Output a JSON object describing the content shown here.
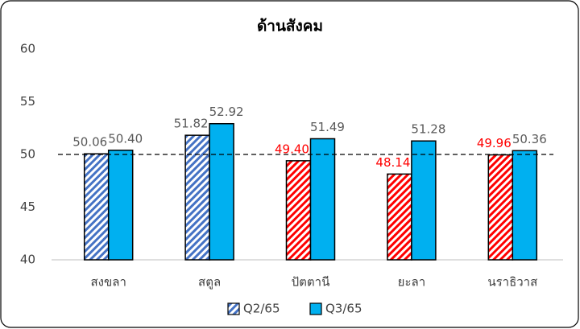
{
  "chart_data": {
    "type": "bar",
    "title": "ด้านสังคม",
    "categories": [
      "สงขลา",
      "สตูล",
      "ปัตตานี",
      "ยะลา",
      "นราธิวาส"
    ],
    "series": [
      {
        "name": "Q2/65",
        "color": "#4472c4",
        "hatched": true,
        "colors": [
          "#4472c4",
          "#4472c4",
          "#ff0000",
          "#ff0000",
          "#ff0000"
        ],
        "label_colors": [
          "#595959",
          "#595959",
          "#ff0000",
          "#ff0000",
          "#ff0000"
        ],
        "values": [
          50.06,
          51.82,
          49.4,
          48.14,
          49.96
        ],
        "value_labels": [
          "50.06",
          "51.82",
          "49.40",
          "48.14",
          "49.96"
        ]
      },
      {
        "name": "Q3/65",
        "color": "#00b0f0",
        "hatched": false,
        "label_colors": [
          "#595959",
          "#595959",
          "#595959",
          "#595959",
          "#595959"
        ],
        "values": [
          50.4,
          52.92,
          51.49,
          51.28,
          50.36
        ],
        "value_labels": [
          "50.40",
          "52.92",
          "51.49",
          "51.28",
          "50.36"
        ]
      }
    ],
    "ylim": [
      40,
      60
    ],
    "yticks": [
      40,
      45,
      50,
      55,
      60
    ],
    "grid": false,
    "reference_line": 50,
    "legend": "bottom"
  }
}
